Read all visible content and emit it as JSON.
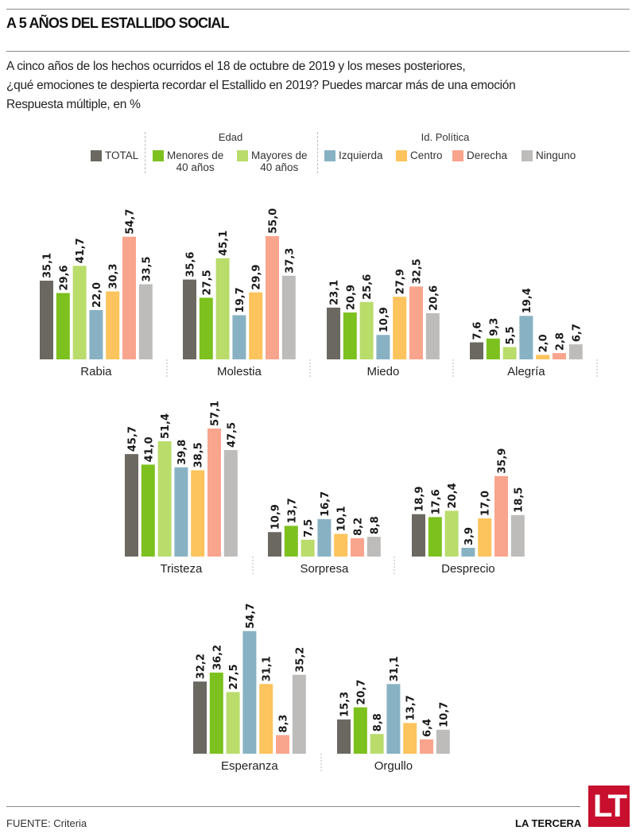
{
  "header": {
    "title": "A 5 AÑOS DEL ESTALLIDO SOCIAL",
    "subtitle_lines": [
      " A cinco años de los hechos ocurridos el 18 de octubre de 2019 y los meses posteriores,",
      "¿qué emociones te despierta recordar el Estallido en 2019? Puedes marcar más de una emoción",
      "Respuesta múltiple, en %"
    ]
  },
  "legend": {
    "group_edad": "Edad",
    "group_politica": "Id. Política",
    "items": [
      {
        "label": "TOTAL",
        "label2": "",
        "color": "#6b6862"
      },
      {
        "label": "Menores de",
        "label2": "40 años",
        "color": "#7dc11f"
      },
      {
        "label": "Mayores de",
        "label2": "40 años",
        "color": "#b9dc6b"
      },
      {
        "label": "Izquierda",
        "label2": "",
        "color": "#88b2c3"
      },
      {
        "label": "Centro",
        "label2": "",
        "color": "#fdc35c"
      },
      {
        "label": "Derecha",
        "label2": "",
        "color": "#f9a48d"
      },
      {
        "label": "Ninguno",
        "label2": "",
        "color": "#bdbcbb"
      }
    ]
  },
  "chart_data": {
    "type": "bar",
    "title": "A 5 AÑOS DEL ESTALLIDO SOCIAL",
    "subtitle": "A cinco años de los hechos ocurridos el 18 de octubre de 2019 y los meses posteriores, ¿qué emociones te despierta recordar el Estallido en 2019? Puedes marcar más de una emoción. Respuesta múltiple, en %",
    "xlabel": "",
    "ylabel": "%",
    "ylim": [
      0,
      60
    ],
    "grid": false,
    "legend_position": "top",
    "series_names": [
      "TOTAL",
      "Menores de 40 años",
      "Mayores de 40 años",
      "Izquierda",
      "Centro",
      "Derecha",
      "Ninguno"
    ],
    "categories": [
      "Rabia",
      "Molestia",
      "Miedo",
      "Alegría",
      "Tristeza",
      "Sorpresa",
      "Desprecio",
      "Esperanza",
      "Orgullo"
    ],
    "groups": [
      {
        "category": "Rabia",
        "values": [
          35.1,
          29.6,
          41.7,
          22.0,
          30.3,
          54.7,
          33.5
        ],
        "labels": [
          "35,1",
          "29,6",
          "41,7",
          "22,0",
          "30,3",
          "54,7",
          "33,5"
        ]
      },
      {
        "category": "Molestia",
        "values": [
          35.6,
          27.5,
          45.1,
          19.7,
          29.9,
          55.0,
          37.3
        ],
        "labels": [
          "35,6",
          "27,5",
          "45,1",
          "19,7",
          "29,9",
          "55,0",
          "37,3"
        ]
      },
      {
        "category": "Miedo",
        "values": [
          23.1,
          20.9,
          25.6,
          10.9,
          27.9,
          32.5,
          20.6
        ],
        "labels": [
          "23,1",
          "20,9",
          "25,6",
          "10,9",
          "27,9",
          "32,5",
          "20,6"
        ]
      },
      {
        "category": "Alegría",
        "values": [
          7.6,
          9.3,
          5.5,
          19.4,
          2.0,
          2.8,
          6.7
        ],
        "labels": [
          "7,6",
          "9,3",
          "5,5",
          "19,4",
          "2,0",
          "2,8",
          "6,7"
        ]
      },
      {
        "category": "Tristeza",
        "values": [
          45.7,
          41.0,
          51.4,
          39.8,
          38.5,
          57.1,
          47.5
        ],
        "labels": [
          "45,7",
          "41,0",
          "51,4",
          "39,8",
          "38,5",
          "57,1",
          "47,5"
        ]
      },
      {
        "category": "Sorpresa",
        "values": [
          10.9,
          13.7,
          7.5,
          16.7,
          10.1,
          8.2,
          8.8
        ],
        "labels": [
          "10,9",
          "13,7",
          "7,5",
          "16,7",
          "10,1",
          "8,2",
          "8,8"
        ]
      },
      {
        "category": "Desprecio",
        "values": [
          18.9,
          17.6,
          20.4,
          3.9,
          17.0,
          35.9,
          18.5
        ],
        "labels": [
          "18,9",
          "17,6",
          "20,4",
          "3,9",
          "17,0",
          "35,9",
          "18,5"
        ]
      },
      {
        "category": "Esperanza",
        "values": [
          32.2,
          36.2,
          27.5,
          54.7,
          31.1,
          8.3,
          35.2
        ],
        "labels": [
          "32,2",
          "36,2",
          "27,5",
          "54,7",
          "31,1",
          "8,3",
          "35,2"
        ]
      },
      {
        "category": "Orgullo",
        "values": [
          15.3,
          20.7,
          8.8,
          31.1,
          13.7,
          6.4,
          10.7
        ],
        "labels": [
          "15,3",
          "20,7",
          "8,8",
          "31,1",
          "13,7",
          "6,4",
          "10,7"
        ]
      }
    ]
  },
  "footer": {
    "source_label": "FUENTE:",
    "source_value": "Criteria",
    "brand": "LA TERCERA",
    "logo": "LT"
  }
}
